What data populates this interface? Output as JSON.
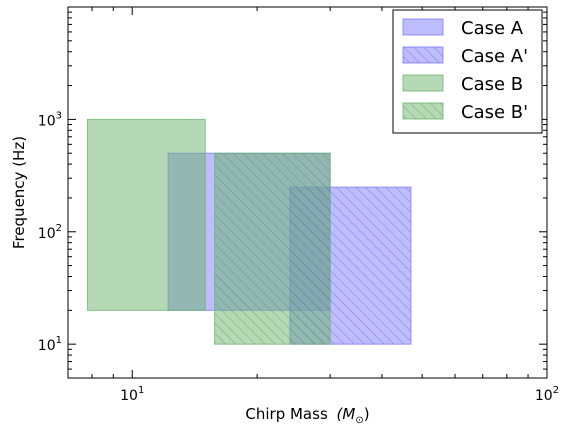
{
  "chart_data": {
    "type": "area",
    "title": "",
    "xlabel": "Chirp Mass",
    "xlabel_math": "(M",
    "xlabel_sub": "⊙",
    "xlabel_close": ")",
    "ylabel": "Frequency (Hz)",
    "xscale": "log",
    "yscale": "log",
    "xlim": [
      7,
      100
    ],
    "ylim": [
      5,
      10000
    ],
    "grid": false,
    "legend_position": "top-right",
    "x_ticks": [
      {
        "value": 10,
        "base": "10",
        "exp": "1"
      },
      {
        "value": 100,
        "base": "10",
        "exp": "2"
      }
    ],
    "y_ticks": [
      {
        "value": 10,
        "base": "10",
        "exp": "1"
      },
      {
        "value": 100,
        "base": "10",
        "exp": "2"
      },
      {
        "value": 1000,
        "base": "10",
        "exp": "3"
      }
    ],
    "series": [
      {
        "name": "Case A",
        "color": "#7b7bff",
        "hatch": false,
        "x_range": [
          12.2,
          30
        ],
        "y_range": [
          20,
          500
        ]
      },
      {
        "name": "Case A'",
        "color": "#7b7bff",
        "hatch": true,
        "x_range": [
          24,
          47
        ],
        "y_range": [
          10,
          250
        ]
      },
      {
        "name": "Case B",
        "color": "#6ab46a",
        "hatch": false,
        "x_range": [
          7.8,
          15
        ],
        "y_range": [
          20,
          1000
        ]
      },
      {
        "name": "Case B'",
        "color": "#6ab46a",
        "hatch": true,
        "x_range": [
          15.8,
          30
        ],
        "y_range": [
          10,
          500
        ]
      }
    ]
  }
}
